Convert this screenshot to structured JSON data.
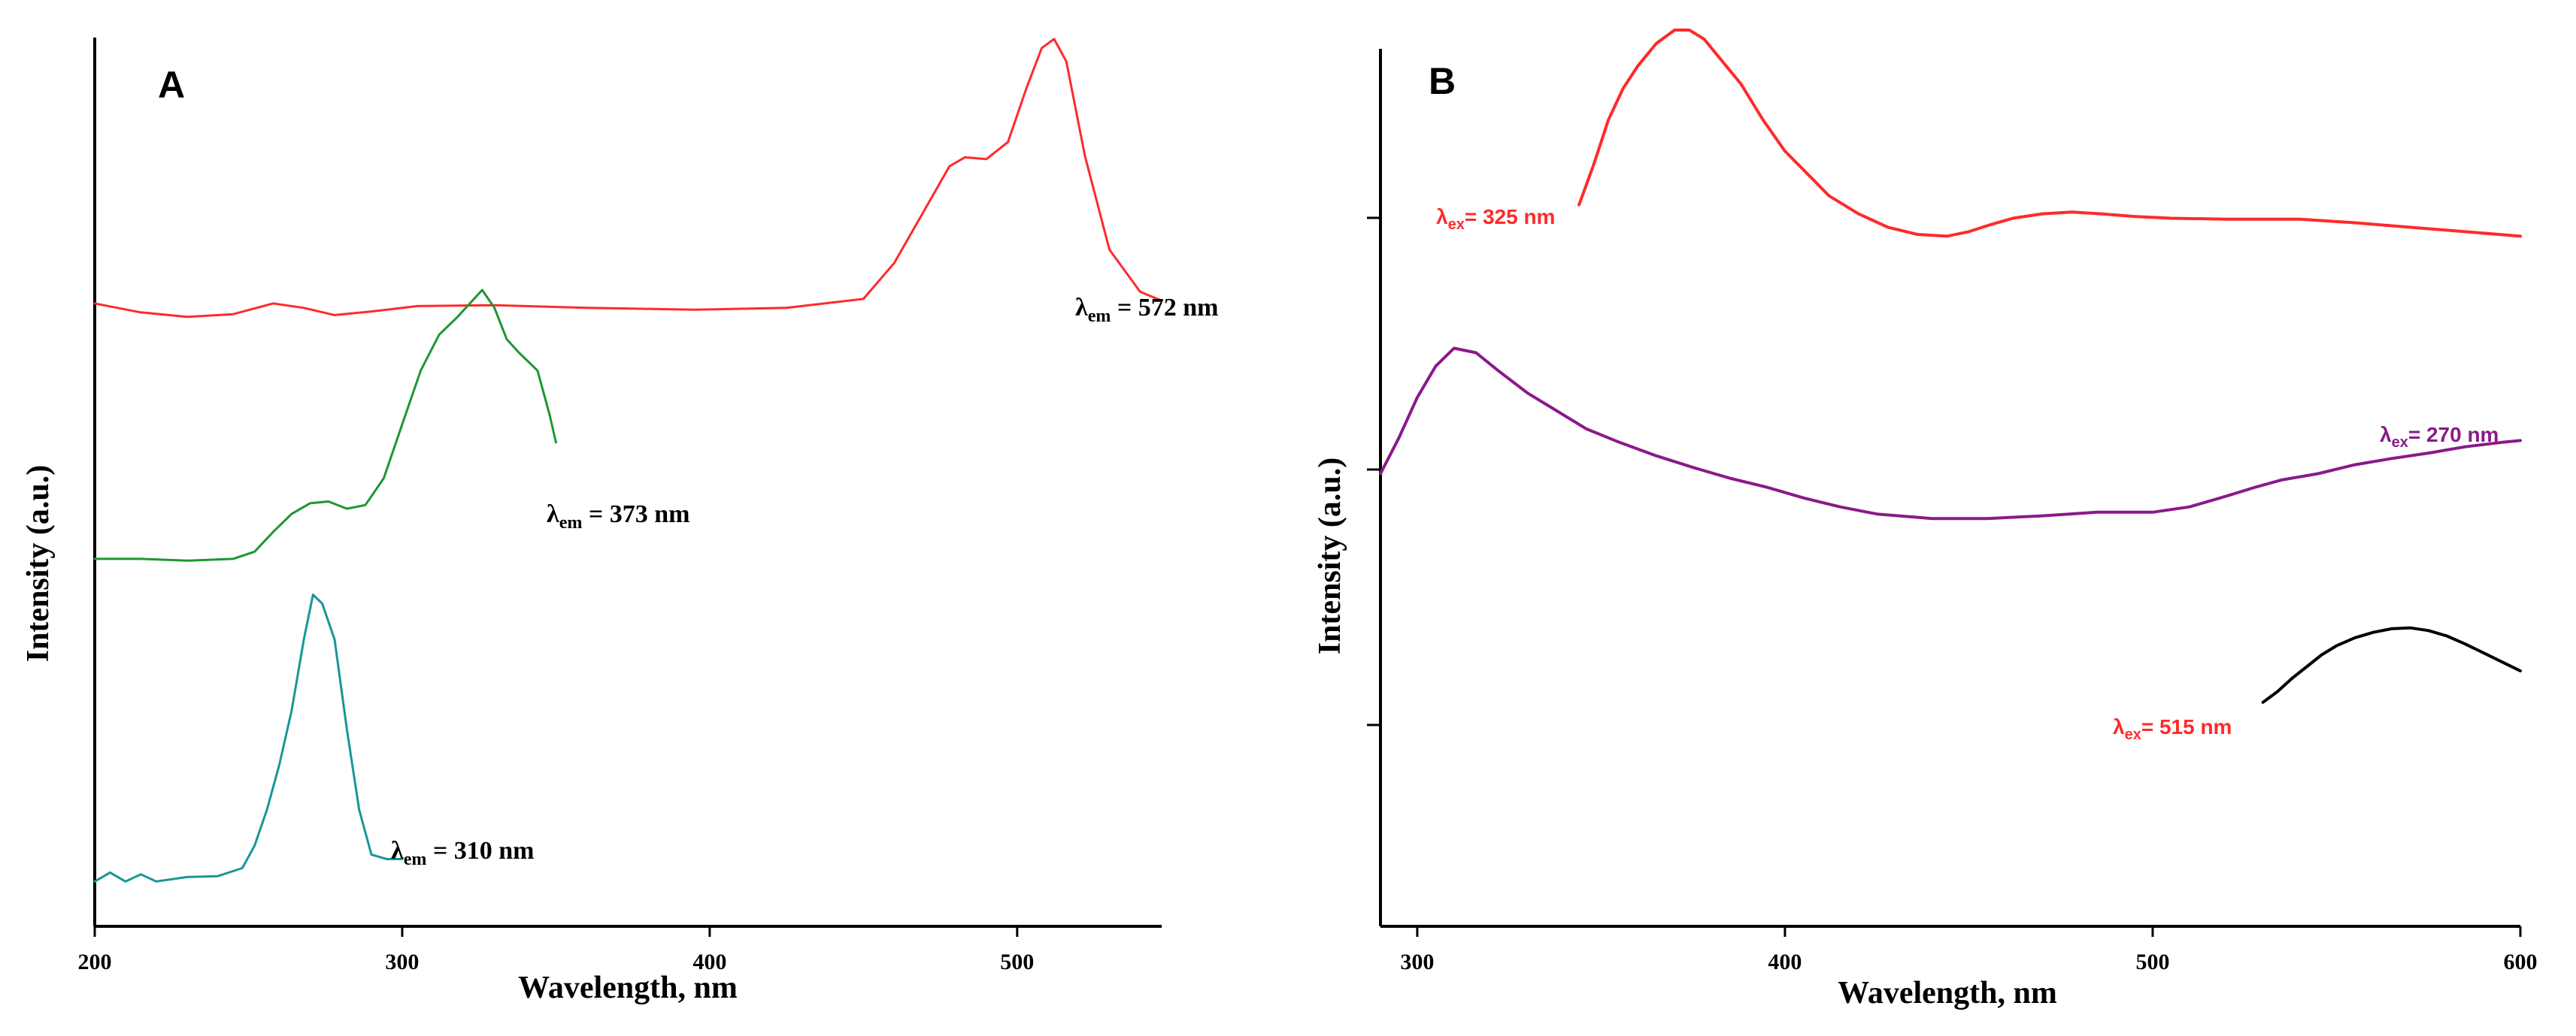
{
  "chart_data": [
    {
      "type": "line",
      "panel": "A",
      "title": "",
      "xlabel": "Wavelength, nm",
      "ylabel": "Intensity (a.u.)",
      "xlim": [
        200,
        547
      ],
      "ylim": [
        0,
        1
      ],
      "xticks": [
        200,
        300,
        400,
        500
      ],
      "grid": false,
      "series": [
        {
          "name": "λem = 572 nm",
          "color": "#ff2a2a",
          "annotation": {
            "lambda": "λ",
            "sub": "em",
            "rest": " = 572 nm"
          },
          "x": [
            200,
            215,
            230,
            245,
            258,
            268,
            278,
            290,
            305,
            330,
            360,
            395,
            425,
            450,
            460,
            470,
            478,
            483,
            490,
            497,
            503,
            508,
            512,
            516,
            522,
            530,
            540,
            547
          ],
          "y": [
            0.695,
            0.685,
            0.68,
            0.683,
            0.695,
            0.69,
            0.682,
            0.686,
            0.692,
            0.693,
            0.69,
            0.688,
            0.69,
            0.7,
            0.74,
            0.8,
            0.848,
            0.858,
            0.856,
            0.875,
            0.935,
            0.98,
            0.99,
            0.965,
            0.86,
            0.755,
            0.708,
            0.698
          ]
        },
        {
          "name": "λem = 373 nm",
          "color": "#1e9632",
          "annotation": {
            "lambda": "λ",
            "sub": "em",
            "rest": " = 373 nm"
          },
          "x": [
            200,
            215,
            230,
            245,
            252,
            258,
            264,
            270,
            276,
            282,
            288,
            294,
            300,
            306,
            312,
            318,
            322,
            326,
            330,
            334,
            338,
            344,
            348,
            350
          ],
          "y": [
            0.41,
            0.41,
            0.408,
            0.41,
            0.418,
            0.44,
            0.46,
            0.472,
            0.474,
            0.466,
            0.47,
            0.5,
            0.56,
            0.62,
            0.66,
            0.68,
            0.695,
            0.71,
            0.69,
            0.655,
            0.64,
            0.62,
            0.57,
            0.54
          ]
        },
        {
          "name": "λem = 310 nm",
          "color": "#199696",
          "annotation": {
            "lambda": "λ",
            "sub": "em",
            "rest": " = 310 nm"
          },
          "x": [
            200,
            205,
            210,
            215,
            220,
            230,
            240,
            248,
            252,
            256,
            260,
            264,
            268,
            271,
            274,
            278,
            282,
            286,
            290,
            295,
            300
          ],
          "y": [
            0.05,
            0.06,
            0.05,
            0.058,
            0.05,
            0.055,
            0.056,
            0.065,
            0.09,
            0.13,
            0.18,
            0.24,
            0.32,
            0.37,
            0.36,
            0.32,
            0.22,
            0.13,
            0.08,
            0.075,
            0.075
          ]
        }
      ]
    },
    {
      "type": "line",
      "panel": "B",
      "title": "",
      "xlabel": "Wavelength, nm",
      "ylabel": "Intensity (a.u.)",
      "xlim": [
        290,
        600
      ],
      "ylim": [
        0,
        1
      ],
      "xticks": [
        300,
        400,
        500,
        600
      ],
      "grid": false,
      "series": [
        {
          "name": "λex = 325 nm",
          "color": "#ff2a2a",
          "annotation": {
            "lambda": "λ",
            "sub": "ex",
            "rest": "= 325 nm"
          },
          "x": [
            344,
            348,
            352,
            356,
            360,
            365,
            370,
            374,
            378,
            382,
            388,
            394,
            400,
            406,
            412,
            420,
            428,
            436,
            444,
            450,
            456,
            462,
            470,
            478,
            486,
            495,
            505,
            520,
            540,
            555,
            570,
            585,
            600
          ],
          "y": [
            0.805,
            0.85,
            0.9,
            0.935,
            0.96,
            0.985,
            1.0,
            1.0,
            0.99,
            0.97,
            0.94,
            0.9,
            0.865,
            0.84,
            0.815,
            0.795,
            0.78,
            0.772,
            0.77,
            0.775,
            0.783,
            0.79,
            0.795,
            0.797,
            0.795,
            0.792,
            0.79,
            0.789,
            0.789,
            0.785,
            0.78,
            0.775,
            0.77
          ]
        },
        {
          "name": "λex = 270 nm",
          "color": "#8a1a8a",
          "annotation": {
            "lambda": "λ",
            "sub": "ex",
            "rest": "= 270 nm"
          },
          "x": [
            290,
            295,
            300,
            305,
            310,
            316,
            322,
            330,
            338,
            346,
            355,
            365,
            375,
            385,
            395,
            405,
            415,
            425,
            440,
            455,
            470,
            485,
            500,
            510,
            520,
            528,
            535,
            545,
            555,
            565,
            575,
            585,
            595,
            600
          ],
          "y": [
            0.505,
            0.545,
            0.59,
            0.625,
            0.645,
            0.64,
            0.62,
            0.595,
            0.575,
            0.555,
            0.54,
            0.525,
            0.512,
            0.5,
            0.49,
            0.478,
            0.468,
            0.46,
            0.455,
            0.455,
            0.458,
            0.462,
            0.462,
            0.468,
            0.48,
            0.49,
            0.498,
            0.505,
            0.515,
            0.522,
            0.528,
            0.535,
            0.54,
            0.542
          ]
        },
        {
          "name": "λex = 515 nm",
          "color": "#000000",
          "annotation": {
            "lambda": "λ",
            "sub": "ex",
            "rest": "= 515 nm"
          },
          "x": [
            530,
            534,
            538,
            542,
            546,
            550,
            555,
            560,
            565,
            570,
            575,
            580,
            585,
            590,
            595,
            600
          ],
          "y": [
            0.25,
            0.262,
            0.277,
            0.29,
            0.303,
            0.313,
            0.322,
            0.328,
            0.332,
            0.333,
            0.33,
            0.324,
            0.315,
            0.305,
            0.295,
            0.285
          ]
        }
      ]
    }
  ]
}
